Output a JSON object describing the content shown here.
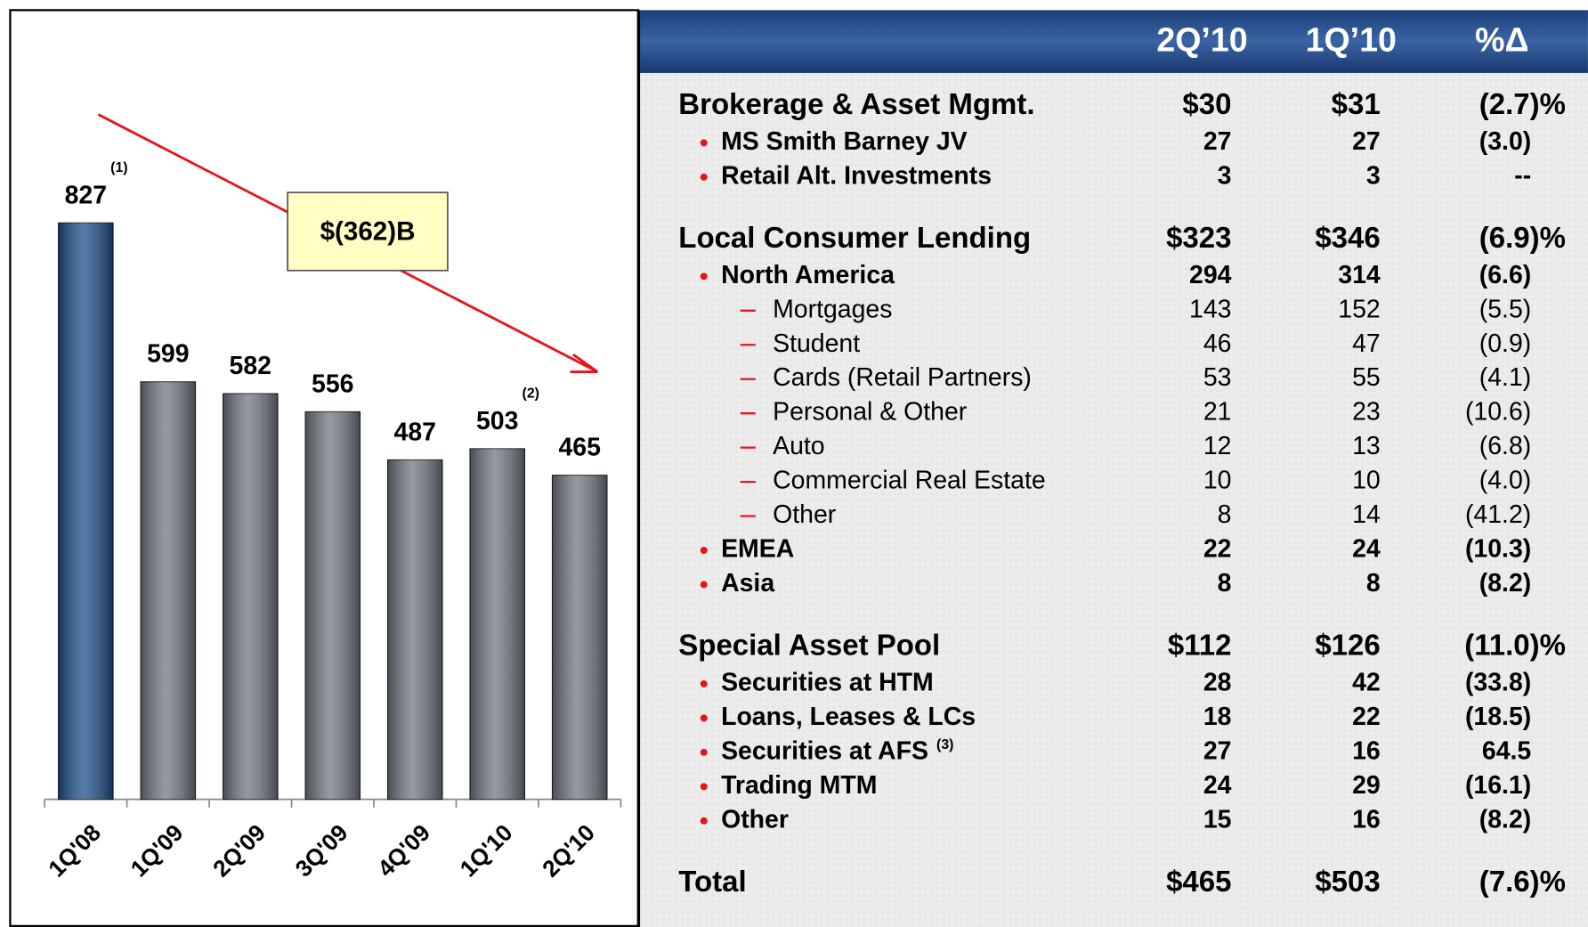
{
  "chart_data": {
    "type": "bar",
    "categories": [
      "1Q'08",
      "1Q'09",
      "2Q'09",
      "3Q'09",
      "4Q'09",
      "1Q'10",
      "2Q'10"
    ],
    "values": [
      827,
      599,
      582,
      556,
      487,
      503,
      465
    ],
    "colors": [
      "#1f4f8c",
      "#717883",
      "#717883",
      "#717883",
      "#717883",
      "#717883",
      "#717883"
    ],
    "value_notes": [
      "(1)",
      null,
      null,
      null,
      null,
      "(2)",
      null
    ],
    "ylim": [
      0,
      1000
    ],
    "annotation": "$(362)B",
    "trend_color": "#e8141c"
  },
  "table": {
    "columns": [
      "2Q’10",
      "1Q’10",
      "%Δ"
    ],
    "rows": [
      {
        "level": 0,
        "label": "Brokerage & Asset Mgmt.",
        "values": [
          "$30",
          "$31",
          "(2.7)%"
        ]
      },
      {
        "level": 1,
        "label": "MS Smith Barney JV",
        "values": [
          "27",
          "27",
          "(3.0)"
        ]
      },
      {
        "level": 1,
        "label": "Retail Alt. Investments",
        "values": [
          "3",
          "3",
          "--"
        ]
      },
      {
        "level": 0,
        "label": "Local Consumer Lending",
        "values": [
          "$323",
          "$346",
          "(6.9)%"
        ]
      },
      {
        "level": 1,
        "label": "North America",
        "values": [
          "294",
          "314",
          "(6.6)"
        ]
      },
      {
        "level": 2,
        "label": "Mortgages",
        "values": [
          "143",
          "152",
          "(5.5)"
        ]
      },
      {
        "level": 2,
        "label": "Student",
        "values": [
          "46",
          "47",
          "(0.9)"
        ]
      },
      {
        "level": 2,
        "label": "Cards (Retail Partners)",
        "values": [
          "53",
          "55",
          "(4.1)"
        ]
      },
      {
        "level": 2,
        "label": "Personal & Other",
        "values": [
          "21",
          "23",
          "(10.6)"
        ]
      },
      {
        "level": 2,
        "label": "Auto",
        "values": [
          "12",
          "13",
          "(6.8)"
        ]
      },
      {
        "level": 2,
        "label": "Commercial Real Estate",
        "values": [
          "10",
          "10",
          "(4.0)"
        ]
      },
      {
        "level": 2,
        "label": "Other",
        "values": [
          "8",
          "14",
          "(41.2)"
        ]
      },
      {
        "level": 1,
        "label": "EMEA",
        "values": [
          "22",
          "24",
          "(10.3)"
        ]
      },
      {
        "level": 1,
        "label": "Asia",
        "values": [
          "8",
          "8",
          "(8.2)"
        ]
      },
      {
        "level": 0,
        "label": "Special Asset Pool",
        "values": [
          "$112",
          "$126",
          "(11.0)%"
        ]
      },
      {
        "level": 1,
        "label": "Securities at HTM",
        "values": [
          "28",
          "42",
          "(33.8)"
        ]
      },
      {
        "level": 1,
        "label": "Loans, Leases & LCs",
        "values": [
          "18",
          "22",
          "(18.5)"
        ]
      },
      {
        "level": 1,
        "label": "Securities at AFS",
        "note": "(3)",
        "values": [
          "27",
          "16",
          "64.5"
        ]
      },
      {
        "level": 1,
        "label": "Trading MTM",
        "values": [
          "24",
          "29",
          "(16.1)"
        ]
      },
      {
        "level": 1,
        "label": "Other",
        "values": [
          "15",
          "16",
          "(8.2)"
        ]
      },
      {
        "level": 0,
        "label": "Total",
        "values": [
          "$465",
          "$503",
          "(7.6)%"
        ]
      }
    ]
  }
}
